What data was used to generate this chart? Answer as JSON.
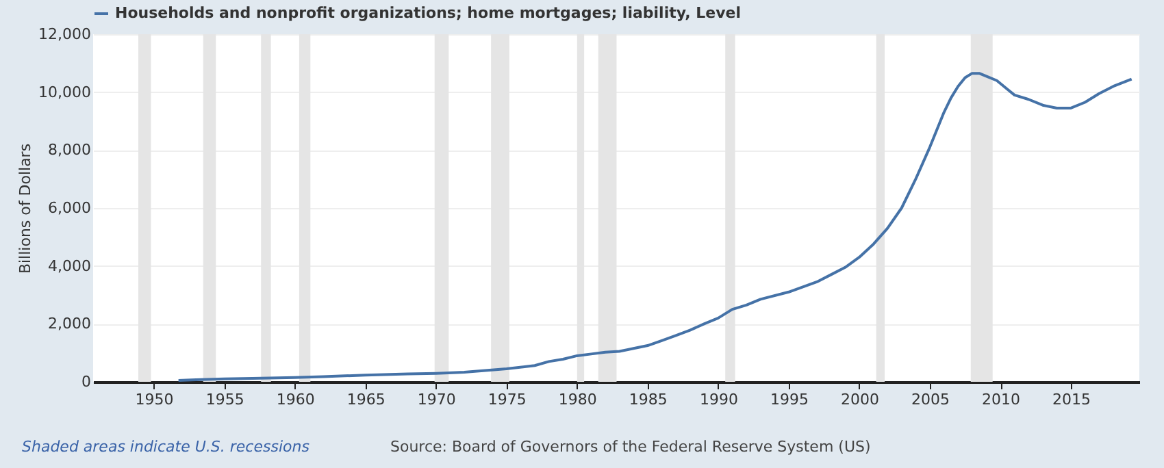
{
  "chart_data": {
    "type": "line",
    "ylabel": "Billions of Dollars",
    "x": [
      1951.75,
      1953,
      1955,
      1957,
      1960,
      1962,
      1965,
      1968,
      1970,
      1972,
      1975,
      1977,
      1978,
      1979,
      1980,
      1981,
      1982,
      1983,
      1984,
      1985,
      1986,
      1987,
      1988,
      1989,
      1990,
      1991,
      1992,
      1993,
      1995,
      1997,
      1998,
      1999,
      2000,
      2001,
      2002,
      2003,
      2004,
      2005,
      2006,
      2006.5,
      2007,
      2007.5,
      2008,
      2008.5,
      2009,
      2009.75,
      2010.5,
      2011,
      2012,
      2013,
      2014,
      2015,
      2016,
      2017,
      2018,
      2019.3
    ],
    "series": [
      {
        "name": "Households and nonprofit organizations; home mortgages; liability, Level",
        "color": "#4572a7",
        "values": [
          50,
          70,
          100,
          120,
          150,
          180,
          230,
          270,
          290,
          330,
          450,
          560,
          700,
          780,
          900,
          960,
          1020,
          1050,
          1150,
          1250,
          1420,
          1600,
          1780,
          2000,
          2200,
          2500,
          2650,
          2850,
          3100,
          3450,
          3700,
          3950,
          4300,
          4750,
          5300,
          6000,
          7000,
          8100,
          9300,
          9800,
          10200,
          10500,
          10650,
          10650,
          10550,
          10400,
          10100,
          9900,
          9750,
          9550,
          9450,
          9450,
          9650,
          9950,
          10200,
          10450
        ]
      }
    ],
    "xlim": [
      1945.7,
      2019.85
    ],
    "xticks": [
      1950,
      1955,
      1960,
      1965,
      1970,
      1975,
      1980,
      1985,
      1990,
      1995,
      2000,
      2005,
      2010,
      2015
    ],
    "ylim": [
      0,
      12000
    ],
    "yticks": [
      0,
      {
        "value": 2000,
        "label": "2,000"
      },
      {
        "value": 4000,
        "label": "4,000"
      },
      {
        "value": 6000,
        "label": "6,000"
      },
      {
        "value": 8000,
        "label": "8,000"
      },
      {
        "value": 10000,
        "label": "10,000"
      },
      {
        "value": 12000,
        "label": "12,000"
      }
    ],
    "grid": "y",
    "legend": "top left",
    "bands": [
      {
        "axis": "x",
        "from": 1948.9,
        "to": 1949.8,
        "color": "#e5e5e5"
      },
      {
        "axis": "x",
        "from": 1953.5,
        "to": 1954.4,
        "color": "#e5e5e5"
      },
      {
        "axis": "x",
        "from": 1957.6,
        "to": 1958.3,
        "color": "#e5e5e5"
      },
      {
        "axis": "x",
        "from": 1960.3,
        "to": 1961.1,
        "color": "#e5e5e5"
      },
      {
        "axis": "x",
        "from": 1969.9,
        "to": 1970.9,
        "color": "#e5e5e5"
      },
      {
        "axis": "x",
        "from": 1973.9,
        "to": 1975.2,
        "color": "#e5e5e5"
      },
      {
        "axis": "x",
        "from": 1980.0,
        "to": 1980.5,
        "color": "#e5e5e5"
      },
      {
        "axis": "x",
        "from": 1981.5,
        "to": 1982.8,
        "color": "#e5e5e5"
      },
      {
        "axis": "x",
        "from": 1990.5,
        "to": 1991.2,
        "color": "#e5e5e5"
      },
      {
        "axis": "x",
        "from": 2001.2,
        "to": 2001.8,
        "color": "#e5e5e5"
      },
      {
        "axis": "x",
        "from": 2007.9,
        "to": 2009.45,
        "color": "#e5e5e5"
      }
    ],
    "annotations": [
      "Shaded areas indicate U.S. recessions",
      "Source: Board of Governors of the Federal Reserve System (US)"
    ]
  }
}
